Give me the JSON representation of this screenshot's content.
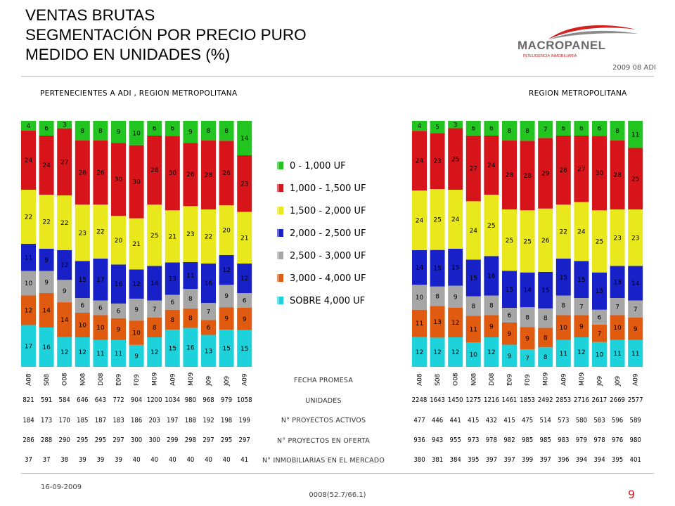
{
  "header": {
    "title_lines": [
      "VENTAS BRUTAS",
      "SEGMENTACIÓN POR PRECIO PURO",
      "MEDIDO EN UNIDADES (%)"
    ],
    "logo_text": "MACROPANEL",
    "logo_subtext": "INTELIGENCIA INMOBILIARIA",
    "period": "2009 08 ADI"
  },
  "colors": {
    "0 - 1,000 UF": "#22c520",
    "1,000 - 1,500 UF": "#d8141b",
    "1,500 - 2,000 UF": "#e8e81c",
    "2,000 - 2,500 UF": "#1820c8",
    "2,500 - 3,000 UF": "#a6a6a6",
    "3,000 - 4,000 UF": "#e05a10",
    "SOBRE 4,000 UF": "#1ed2dc",
    "logo_red": "#d32020",
    "logo_gray": "#6b6b6b"
  },
  "chart_data": [
    {
      "type": "bar",
      "stacked": true,
      "orientation": "vertical",
      "title": "PERTENECIENTES A ADI , REGION METROPOLITANA",
      "categories": [
        "A08",
        "S08",
        "O08",
        "N08",
        "D08",
        "E09",
        "F09",
        "M09",
        "A09",
        "M09",
        "J09",
        "J09",
        "A09"
      ],
      "series": [
        {
          "name": "SOBRE 4,000 UF",
          "values": [
            17,
            16,
            12,
            12,
            11,
            11,
            9,
            12,
            15,
            16,
            13,
            15,
            15
          ]
        },
        {
          "name": "3,000 - 4,000 UF",
          "values": [
            12,
            14,
            14,
            10,
            10,
            9,
            10,
            8,
            8,
            8,
            6,
            9,
            9
          ]
        },
        {
          "name": "2,500 - 3,000 UF",
          "values": [
            10,
            9,
            9,
            6,
            6,
            6,
            9,
            7,
            6,
            8,
            7,
            9,
            6
          ]
        },
        {
          "name": "2,000 - 2,500 UF",
          "values": [
            11,
            9,
            12,
            15,
            17,
            16,
            12,
            14,
            13,
            11,
            16,
            12,
            12
          ]
        },
        {
          "name": "1,500 - 2,000 UF",
          "values": [
            22,
            22,
            22,
            23,
            22,
            20,
            21,
            25,
            21,
            23,
            22,
            20,
            21
          ]
        },
        {
          "name": "1,000 - 1,500 UF",
          "values": [
            24,
            24,
            27,
            26,
            26,
            30,
            30,
            28,
            30,
            26,
            28,
            26,
            23
          ]
        },
        {
          "name": "0 - 1,000 UF",
          "values": [
            4,
            6,
            3,
            8,
            8,
            9,
            10,
            6,
            6,
            9,
            8,
            8,
            14
          ]
        }
      ],
      "ylim": [
        0,
        100
      ]
    },
    {
      "type": "bar",
      "stacked": true,
      "orientation": "vertical",
      "title": "REGION METROPOLITANA",
      "categories": [
        "A08",
        "S08",
        "O08",
        "N08",
        "D08",
        "E09",
        "F09",
        "M09",
        "A09",
        "M09",
        "J09",
        "J09",
        "A09"
      ],
      "series": [
        {
          "name": "SOBRE 4,000 UF",
          "values": [
            12,
            12,
            12,
            10,
            12,
            9,
            7,
            8,
            11,
            12,
            10,
            11,
            11
          ]
        },
        {
          "name": "3,000 - 4,000 UF",
          "values": [
            11,
            13,
            12,
            11,
            9,
            9,
            9,
            8,
            10,
            9,
            7,
            10,
            9
          ]
        },
        {
          "name": "2,500 - 3,000 UF",
          "values": [
            10,
            8,
            9,
            8,
            8,
            6,
            8,
            8,
            8,
            7,
            6,
            7,
            7
          ]
        },
        {
          "name": "2,000 - 2,500 UF",
          "values": [
            14,
            15,
            15,
            15,
            16,
            15,
            14,
            15,
            15,
            15,
            15,
            13,
            14
          ]
        },
        {
          "name": "1,500 - 2,000 UF",
          "values": [
            24,
            25,
            24,
            24,
            25,
            25,
            25,
            26,
            22,
            24,
            25,
            23,
            23
          ]
        },
        {
          "name": "1,000 - 1,500 UF",
          "values": [
            24,
            23,
            25,
            27,
            24,
            28,
            28,
            29,
            28,
            27,
            30,
            28,
            25
          ]
        },
        {
          "name": "0 - 1,000 UF",
          "values": [
            4,
            5,
            3,
            6,
            6,
            8,
            8,
            7,
            6,
            6,
            6,
            8,
            11
          ]
        }
      ],
      "ylim": [
        0,
        100
      ]
    }
  ],
  "legend": {
    "items": [
      "0 - 1,000 UF",
      "1,000 - 1,500 UF",
      "1,500 - 2,000 UF",
      "2,000 - 2,500 UF",
      "2,500 - 3,000 UF",
      "3,000 - 4,000 UF",
      "SOBRE 4,000 UF"
    ]
  },
  "stats_table": {
    "labels": [
      "FECHA PROMESA",
      "UNIDADES",
      "N° PROYECTOS ACTIVOS",
      "N° PROYECTOS EN OFERTA",
      "N° INMOBILIARIAS EN EL MERCADO"
    ],
    "left": {
      "unidades": [
        "821",
        "591",
        "584",
        "646",
        "643",
        "772",
        "904",
        "1200",
        "1034",
        "980",
        "968",
        "979",
        "1058"
      ],
      "proyectos_activos": [
        "184",
        "173",
        "170",
        "185",
        "187",
        "183",
        "186",
        "203",
        "197",
        "188",
        "192",
        "198",
        "199"
      ],
      "proyectos_oferta": [
        "286",
        "288",
        "290",
        "295",
        "295",
        "297",
        "300",
        "300",
        "299",
        "298",
        "297",
        "295",
        "297"
      ],
      "inmobiliarias": [
        "37",
        "37",
        "38",
        "39",
        "39",
        "39",
        "40",
        "40",
        "40",
        "40",
        "40",
        "40",
        "41"
      ]
    },
    "right": {
      "unidades": [
        "2248",
        "1643",
        "1450",
        "1275",
        "1216",
        "1461",
        "1853",
        "2492",
        "2853",
        "2716",
        "2617",
        "2669",
        "2577"
      ],
      "proyectos_activos": [
        "477",
        "446",
        "441",
        "415",
        "432",
        "415",
        "475",
        "514",
        "573",
        "580",
        "583",
        "596",
        "589"
      ],
      "proyectos_oferta": [
        "936",
        "943",
        "955",
        "973",
        "978",
        "982",
        "985",
        "985",
        "983",
        "979",
        "978",
        "976",
        "980"
      ],
      "inmobiliarias": [
        "380",
        "381",
        "384",
        "395",
        "397",
        "397",
        "399",
        "397",
        "396",
        "394",
        "394",
        "395",
        "401"
      ]
    }
  },
  "footer": {
    "date": "16-09-2009",
    "code": "0008(52.7/66.1)",
    "page": "9"
  }
}
